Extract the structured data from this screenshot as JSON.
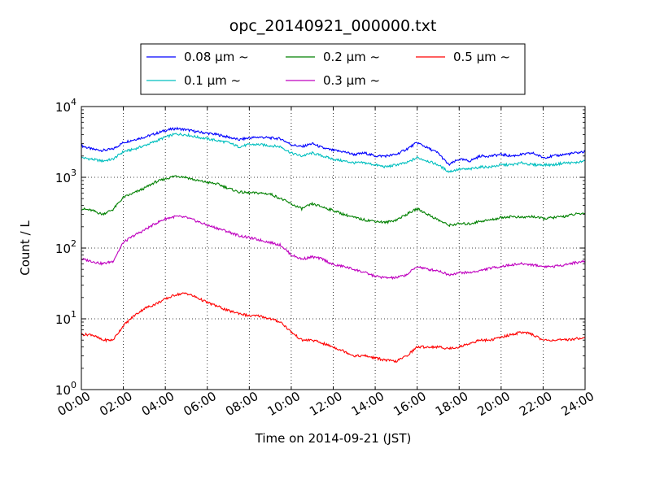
{
  "chart_data": {
    "type": "line",
    "title": "opc_20140921_000000.txt",
    "xlabel": "Time on 2014-09-21 (JST)",
    "ylabel": "Count / L",
    "x_unit": "hours",
    "xlim": [
      0,
      24
    ],
    "ylim": [
      1,
      10000
    ],
    "yscale": "log",
    "grid": true,
    "legend_position": "top-center",
    "x_ticks": [
      {
        "value": 0,
        "label": "00:00"
      },
      {
        "value": 2,
        "label": "02:00"
      },
      {
        "value": 4,
        "label": "04:00"
      },
      {
        "value": 6,
        "label": "06:00"
      },
      {
        "value": 8,
        "label": "08:00"
      },
      {
        "value": 10,
        "label": "10:00"
      },
      {
        "value": 12,
        "label": "12:00"
      },
      {
        "value": 14,
        "label": "14:00"
      },
      {
        "value": 16,
        "label": "16:00"
      },
      {
        "value": 18,
        "label": "18:00"
      },
      {
        "value": 20,
        "label": "20:00"
      },
      {
        "value": 22,
        "label": "22:00"
      },
      {
        "value": 24,
        "label": "24:00"
      }
    ],
    "y_ticks": [
      {
        "value": 1,
        "base": "10",
        "exp": "0"
      },
      {
        "value": 10,
        "base": "10",
        "exp": "1"
      },
      {
        "value": 100,
        "base": "10",
        "exp": "2"
      },
      {
        "value": 1000,
        "base": "10",
        "exp": "3"
      },
      {
        "value": 10000,
        "base": "10",
        "exp": "4"
      }
    ],
    "x": [
      0,
      0.5,
      1,
      1.5,
      2,
      2.5,
      3,
      3.5,
      4,
      4.5,
      5,
      5.5,
      6,
      6.5,
      7,
      7.5,
      8,
      8.5,
      9,
      9.5,
      10,
      10.5,
      11,
      11.5,
      12,
      12.5,
      13,
      13.5,
      14,
      14.5,
      15,
      15.5,
      16,
      16.5,
      17,
      17.5,
      18,
      18.5,
      19,
      19.5,
      20,
      20.5,
      21,
      21.5,
      22,
      22.5,
      23,
      23.5,
      24
    ],
    "series": [
      {
        "name": "0.08 μm ~",
        "color": "#0000ff",
        "values": [
          2800,
          2500,
          2400,
          2500,
          3100,
          3400,
          3700,
          4100,
          4600,
          4900,
          4700,
          4400,
          4200,
          4000,
          3700,
          3400,
          3600,
          3700,
          3600,
          3500,
          2900,
          2700,
          3000,
          2600,
          2400,
          2300,
          2100,
          2200,
          2000,
          2000,
          2100,
          2500,
          3100,
          2600,
          2200,
          1500,
          1800,
          1700,
          2000,
          2000,
          2100,
          2000,
          2100,
          2200,
          1900,
          2000,
          2100,
          2200,
          2300
        ]
      },
      {
        "name": "0.1 μm ~",
        "color": "#00bfbf",
        "values": [
          1900,
          1800,
          1700,
          1800,
          2300,
          2500,
          2800,
          3200,
          3700,
          4100,
          4000,
          3700,
          3500,
          3300,
          3100,
          2700,
          2900,
          2900,
          2800,
          2700,
          2200,
          2000,
          2200,
          2000,
          1800,
          1700,
          1600,
          1600,
          1500,
          1400,
          1500,
          1600,
          1900,
          1700,
          1500,
          1200,
          1300,
          1300,
          1400,
          1400,
          1500,
          1500,
          1600,
          1500,
          1500,
          1500,
          1600,
          1600,
          1700
        ]
      },
      {
        "name": "0.2 μm ~",
        "color": "#008000",
        "values": [
          360,
          340,
          300,
          350,
          520,
          600,
          700,
          850,
          950,
          1050,
          1000,
          900,
          850,
          800,
          700,
          620,
          600,
          600,
          580,
          500,
          420,
          360,
          420,
          380,
          340,
          300,
          270,
          250,
          240,
          230,
          250,
          300,
          360,
          300,
          250,
          210,
          220,
          220,
          240,
          250,
          270,
          280,
          270,
          280,
          260,
          270,
          280,
          300,
          310
        ]
      },
      {
        "name": "0.3 μm ~",
        "color": "#bf00bf",
        "values": [
          70,
          65,
          60,
          65,
          120,
          150,
          180,
          220,
          260,
          280,
          270,
          240,
          210,
          190,
          170,
          150,
          140,
          130,
          120,
          110,
          80,
          70,
          75,
          70,
          58,
          55,
          50,
          45,
          40,
          38,
          38,
          42,
          55,
          50,
          48,
          42,
          45,
          45,
          48,
          52,
          55,
          58,
          60,
          58,
          55,
          55,
          58,
          62,
          65
        ]
      },
      {
        "name": "0.5 μm ~",
        "color": "#ff0000",
        "values": [
          6,
          6,
          5,
          5,
          8,
          11,
          14,
          16,
          19,
          22,
          23,
          20,
          17,
          15,
          13,
          12,
          11,
          11,
          10,
          9,
          6.5,
          5,
          5,
          4.5,
          4,
          3.5,
          3,
          3,
          2.8,
          2.6,
          2.5,
          3,
          4,
          4,
          4,
          3.8,
          4,
          4.5,
          5,
          5,
          5.5,
          6,
          6.5,
          6,
          5,
          5,
          5,
          5.2,
          5.5
        ]
      }
    ]
  }
}
